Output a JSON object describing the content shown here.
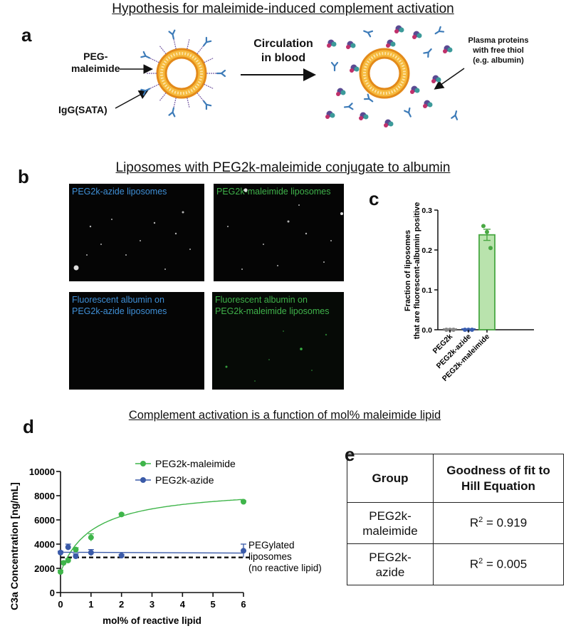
{
  "section_titles": {
    "top": "Hypothesis for maleimide-induced complement activation",
    "middle": "Liposomes with PEG2k-maleimide conjugate to albumin",
    "bottom": "Complement activation is a function of mol% maleimide lipid"
  },
  "panel_letters": {
    "a": "a",
    "b": "b",
    "c": "c",
    "d": "d",
    "e": "e"
  },
  "panel_a": {
    "peg_label_line1": "PEG-",
    "peg_label_line2": "maleimide",
    "igg_label": "IgG(SATA)",
    "circulation_line1": "Circulation",
    "circulation_line2": "in blood",
    "plasma_line1": "Plasma proteins",
    "plasma_line2": "with free thiol",
    "plasma_line3": "(e.g. albumin)"
  },
  "panel_b": {
    "img1_caption": "PEG2k-azide liposomes",
    "img2_caption": "PEG2k-maleimide liposomes",
    "img3_caption_line1": "Fluorescent albumin on",
    "img3_caption_line2": "PEG2k-azide liposomes",
    "img4_caption_line1": "Fluorescent albumin on",
    "img4_caption_line2": "PEG2k-maleimide liposomes"
  },
  "chart_data": [
    {
      "type": "bar",
      "ylabel_line1": "Fraction of liposomes",
      "ylabel_line2": "that are fluorescent-albumin positive",
      "categories": [
        "PEG2k",
        "PEG2k-azide",
        "PEG2k-maleimide"
      ],
      "values": [
        0.0,
        0.0,
        0.238
      ],
      "errors": [
        0.0,
        0.0,
        0.014
      ],
      "points": [
        [
          0.0,
          0.0,
          0.0
        ],
        [
          0.0,
          0.0,
          0.0
        ],
        [
          0.26,
          0.245,
          0.205
        ]
      ],
      "ylim": [
        0,
        0.3
      ],
      "yticks": [
        "0.0",
        "0.1",
        "0.2",
        "0.3"
      ],
      "colors": {
        "bar": "#b9e3ad",
        "edge": "#49a843",
        "point": "#49a843",
        "zero_point": "#888888",
        "zero_point2": "#3a5eb0"
      }
    },
    {
      "type": "scatter",
      "xlabel": "mol% of reactive lipid",
      "ylabel": "C3a Concentration [ng/mL]",
      "xlim": [
        0,
        6
      ],
      "ylim": [
        0,
        10000
      ],
      "xticks": [
        "0",
        "1",
        "2",
        "3",
        "4",
        "5",
        "6"
      ],
      "yticks": [
        "0",
        "2000",
        "4000",
        "6000",
        "8000",
        "10000"
      ],
      "series": [
        {
          "name": "PEG2k-maleimide",
          "color": "#3fb54a",
          "x": [
            0,
            0.1,
            0.25,
            0.5,
            1,
            2,
            6
          ],
          "y": [
            1700,
            2450,
            2650,
            3550,
            4550,
            6450,
            7500
          ],
          "err": [
            150,
            150,
            150,
            150,
            300,
            80,
            80
          ]
        },
        {
          "name": "PEG2k-azide",
          "color": "#3a5aa8",
          "x": [
            0,
            0.25,
            0.5,
            1,
            2,
            6
          ],
          "y": [
            3300,
            3750,
            3000,
            3300,
            3050,
            3450
          ],
          "err": [
            120,
            250,
            200,
            250,
            100,
            550
          ]
        }
      ],
      "baseline": {
        "y": 2900,
        "label_line1": "PEGylated",
        "label_line2": "liposomes",
        "label_line3": "(no reactive lipid)"
      }
    }
  ],
  "table_e": {
    "header_group": "Group",
    "header_fit_line1": "Goodness of fit to",
    "header_fit_line2": "Hill Equation",
    "rows": [
      {
        "group_line1": "PEG2k-",
        "group_line2": "maleimide",
        "r_prefix": "R",
        "r_sup": "2",
        "r_value": " = 0.919"
      },
      {
        "group_line1": "PEG2k-",
        "group_line2": "azide",
        "r_prefix": "R",
        "r_sup": "2",
        "r_value": " = 0.005"
      }
    ]
  }
}
